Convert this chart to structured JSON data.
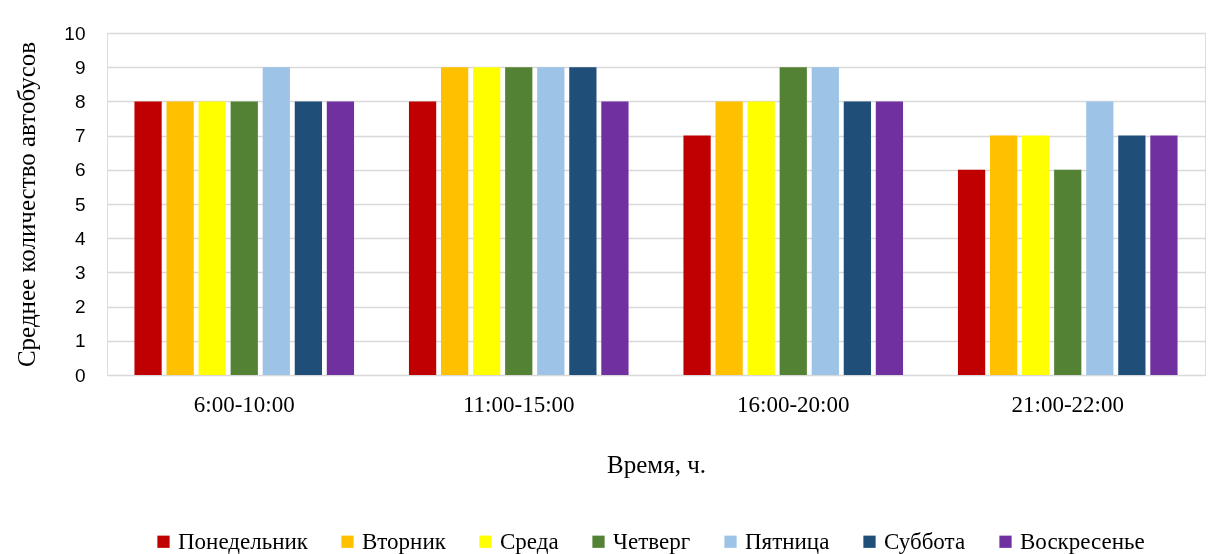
{
  "chart_data": {
    "type": "bar",
    "xlabel": "Время, ч.",
    "ylabel": "Среднее количество автобусов",
    "categories": [
      "6:00-10:00",
      "11:00-15:00",
      "16:00-20:00",
      "21:00-22:00"
    ],
    "series": [
      {
        "name": "Понедельник",
        "color": "#c00000",
        "values": [
          8,
          8,
          7,
          6
        ]
      },
      {
        "name": "Вторник",
        "color": "#ffc000",
        "values": [
          8,
          9,
          8,
          7
        ]
      },
      {
        "name": "Среда",
        "color": "#ffff00",
        "values": [
          8,
          9,
          8,
          7
        ]
      },
      {
        "name": "Четверг",
        "color": "#548235",
        "values": [
          8,
          9,
          9,
          6
        ]
      },
      {
        "name": "Пятница",
        "color": "#9dc3e6",
        "values": [
          9,
          9,
          9,
          8
        ]
      },
      {
        "name": "Суббота",
        "color": "#1f4e79",
        "values": [
          8,
          9,
          8,
          7
        ]
      },
      {
        "name": "Воскресенье",
        "color": "#7030a0",
        "values": [
          8,
          8,
          8,
          7
        ]
      }
    ],
    "ylim": [
      0,
      10
    ],
    "yticks": [
      0,
      1,
      2,
      3,
      4,
      5,
      6,
      7,
      8,
      9,
      10
    ],
    "grid": "y",
    "legend": "bottom"
  }
}
